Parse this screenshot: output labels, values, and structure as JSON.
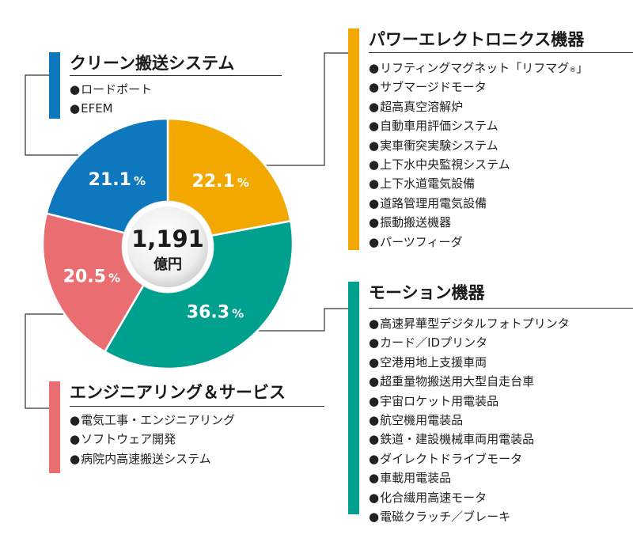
{
  "chart_data": {
    "type": "pie",
    "center_label": {
      "value": "1,191",
      "unit": "億円"
    },
    "slices": [
      {
        "label": "パワーエレクトロニクス機器",
        "value": 22.1,
        "label_text": "22.1",
        "pct_sign": "%",
        "color": "#f3a800"
      },
      {
        "label": "モーション機器",
        "value": 36.3,
        "label_text": "36.3",
        "pct_sign": "%",
        "color": "#00a08e"
      },
      {
        "label": "エンジニアリング＆サービス",
        "value": 20.5,
        "label_text": "20.5",
        "pct_sign": "%",
        "color": "#ea6d71"
      },
      {
        "label": "クリーン搬送システム",
        "value": 21.1,
        "label_text": "21.1",
        "pct_sign": "%",
        "color": "#0e78bf"
      }
    ]
  },
  "categories": {
    "power": {
      "title": "パワーエレクトロニクス機器",
      "items": [
        "リフティングマグネット「リフマグ",
        "サブマージドモータ",
        "超高真空溶解炉",
        "自動車用評価システム",
        "実車衝突実験システム",
        "上下水中央監視システム",
        "上下水道電気設備",
        "道路管理用電気設備",
        "振動搬送機器",
        "パーツフィーダ"
      ],
      "first_item_mark": "®",
      "first_item_end": "」"
    },
    "motion": {
      "title": "モーション機器",
      "items": [
        "高速昇華型デジタルフォトプリンタ",
        "カード／IDプリンタ",
        "空港用地上支援車両",
        "超重量物搬送用大型自走台車",
        "宇宙ロケット用電装品",
        "航空機用電装品",
        "鉄道・建設機械車両用電装品",
        "ダイレクトドライブモータ",
        "車載用電装品",
        "化合繊用高速モータ",
        "電磁クラッチ／ブレーキ"
      ]
    },
    "engineering": {
      "title": "エンジニアリング＆サービス",
      "items": [
        "電気工事・エンジニアリング",
        "ソフトウェア開発",
        "病院内高速搬送システム"
      ]
    },
    "clean": {
      "title": "クリーン搬送システム",
      "items": [
        "ロードポート",
        "EFEM"
      ]
    }
  }
}
